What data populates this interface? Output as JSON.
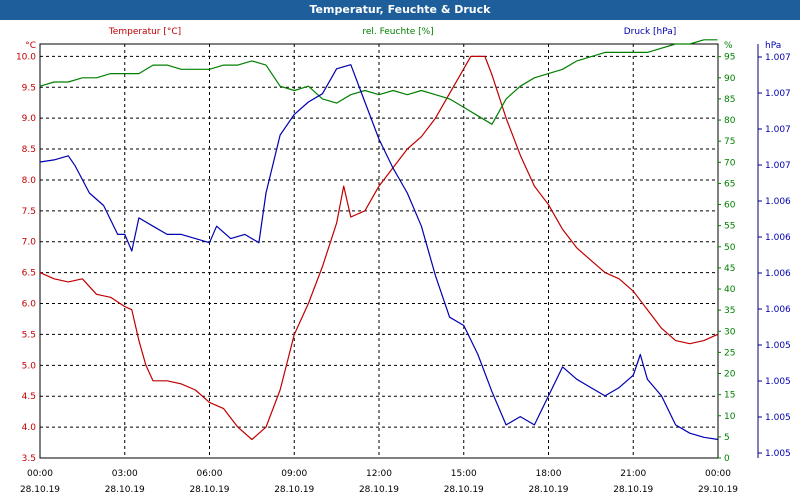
{
  "window": {
    "title": "Temperatur, Feuchte & Druck"
  },
  "chart_data": {
    "type": "line",
    "title": "Temperatur, Feuchte & Druck",
    "x_tick_times": [
      "00:00",
      "03:00",
      "06:00",
      "09:00",
      "12:00",
      "15:00",
      "18:00",
      "21:00",
      "00:00"
    ],
    "x_tick_dates": [
      "28.10.19",
      "28.10.19",
      "28.10.19",
      "28.10.19",
      "28.10.19",
      "28.10.19",
      "28.10.19",
      "28.10.19",
      "29.10.19"
    ],
    "xlim": [
      "28.10.19 00:00",
      "29.10.19 00:00"
    ],
    "grid": true,
    "axes": {
      "temperature": {
        "label": "Temperatur [°C]",
        "unit": "°C",
        "ylim": [
          3.5,
          10.2
        ],
        "ticks": [
          "10.0",
          "9.5",
          "9.0",
          "8.5",
          "8.0",
          "7.5",
          "7.0",
          "6.5",
          "6.0",
          "5.5",
          "5.0",
          "4.5",
          "4.0",
          "3.5"
        ],
        "color": "#c00000"
      },
      "humidity": {
        "label": "rel. Feuchte [%]",
        "unit": "%",
        "ylim": [
          0,
          98
        ],
        "ticks": [
          "95",
          "90",
          "85",
          "80",
          "75",
          "70",
          "65",
          "60",
          "55",
          "50",
          "45",
          "40",
          "35",
          "30",
          "25",
          "20",
          "15",
          "10",
          "5",
          "0"
        ],
        "color": "#008000"
      },
      "pressure": {
        "label": "Druck [hPa]",
        "unit": "hPa",
        "ticks": [
          "1.007",
          "1.007",
          "1.007",
          "1.007",
          "1.006",
          "1.006",
          "1.006",
          "1.006",
          "1.005",
          "1.005",
          "1.005",
          "1.005"
        ],
        "color": "#0000b0"
      }
    },
    "series": [
      {
        "name": "Temperatur [°C]",
        "axis": "temperature",
        "color": "#c00000",
        "points": [
          [
            "28.10.19 00:00",
            6.5
          ],
          [
            "28.10.19 00:30",
            6.4
          ],
          [
            "28.10.19 01:00",
            6.35
          ],
          [
            "28.10.19 01:30",
            6.4
          ],
          [
            "28.10.19 02:00",
            6.15
          ],
          [
            "28.10.19 02:30",
            6.1
          ],
          [
            "28.10.19 03:00",
            5.95
          ],
          [
            "28.10.19 03:15",
            5.9
          ],
          [
            "28.10.19 03:30",
            5.4
          ],
          [
            "28.10.19 03:45",
            5.0
          ],
          [
            "28.10.19 04:00",
            4.75
          ],
          [
            "28.10.19 04:30",
            4.75
          ],
          [
            "28.10.19 05:00",
            4.7
          ],
          [
            "28.10.19 05:30",
            4.6
          ],
          [
            "28.10.19 06:00",
            4.4
          ],
          [
            "28.10.19 06:30",
            4.3
          ],
          [
            "28.10.19 07:00",
            4.0
          ],
          [
            "28.10.19 07:30",
            3.8
          ],
          [
            "28.10.19 08:00",
            4.0
          ],
          [
            "28.10.19 08:30",
            4.6
          ],
          [
            "28.10.19 09:00",
            5.5
          ],
          [
            "28.10.19 09:30",
            6.0
          ],
          [
            "28.10.19 10:00",
            6.6
          ],
          [
            "28.10.19 10:30",
            7.3
          ],
          [
            "28.10.19 10:45",
            7.9
          ],
          [
            "28.10.19 11:00",
            7.4
          ],
          [
            "28.10.19 11:30",
            7.5
          ],
          [
            "28.10.19 12:00",
            7.9
          ],
          [
            "28.10.19 12:30",
            8.2
          ],
          [
            "28.10.19 13:00",
            8.5
          ],
          [
            "28.10.19 13:30",
            8.7
          ],
          [
            "28.10.19 14:00",
            9.0
          ],
          [
            "28.10.19 14:30",
            9.4
          ],
          [
            "28.10.19 15:00",
            9.8
          ],
          [
            "28.10.19 15:15",
            10.0
          ],
          [
            "28.10.19 15:45",
            10.0
          ],
          [
            "28.10.19 16:00",
            9.7
          ],
          [
            "28.10.19 16:30",
            9.0
          ],
          [
            "28.10.19 17:00",
            8.4
          ],
          [
            "28.10.19 17:30",
            7.9
          ],
          [
            "28.10.19 18:00",
            7.6
          ],
          [
            "28.10.19 18:30",
            7.2
          ],
          [
            "28.10.19 19:00",
            6.9
          ],
          [
            "28.10.19 19:30",
            6.7
          ],
          [
            "28.10.19 20:00",
            6.5
          ],
          [
            "28.10.19 20:30",
            6.4
          ],
          [
            "28.10.19 21:00",
            6.2
          ],
          [
            "28.10.19 21:30",
            5.9
          ],
          [
            "28.10.19 22:00",
            5.6
          ],
          [
            "28.10.19 22:30",
            5.4
          ],
          [
            "28.10.19 23:00",
            5.35
          ],
          [
            "28.10.19 23:30",
            5.4
          ],
          [
            "28.10.19 23:59",
            5.5
          ]
        ]
      },
      {
        "name": "rel. Feuchte [%]",
        "axis": "humidity",
        "color": "#008000",
        "points": [
          [
            "28.10.19 00:00",
            88
          ],
          [
            "28.10.19 00:30",
            89
          ],
          [
            "28.10.19 01:00",
            89
          ],
          [
            "28.10.19 01:30",
            90
          ],
          [
            "28.10.19 02:00",
            90
          ],
          [
            "28.10.19 02:30",
            91
          ],
          [
            "28.10.19 03:00",
            91
          ],
          [
            "28.10.19 03:30",
            91
          ],
          [
            "28.10.19 04:00",
            93
          ],
          [
            "28.10.19 04:30",
            93
          ],
          [
            "28.10.19 05:00",
            92
          ],
          [
            "28.10.19 05:30",
            92
          ],
          [
            "28.10.19 06:00",
            92
          ],
          [
            "28.10.19 06:30",
            93
          ],
          [
            "28.10.19 07:00",
            93
          ],
          [
            "28.10.19 07:30",
            94
          ],
          [
            "28.10.19 08:00",
            93
          ],
          [
            "28.10.19 08:30",
            88
          ],
          [
            "28.10.19 09:00",
            87
          ],
          [
            "28.10.19 09:30",
            88
          ],
          [
            "28.10.19 10:00",
            85
          ],
          [
            "28.10.19 10:30",
            84
          ],
          [
            "28.10.19 11:00",
            86
          ],
          [
            "28.10.19 11:30",
            87
          ],
          [
            "28.10.19 12:00",
            86
          ],
          [
            "28.10.19 12:30",
            87
          ],
          [
            "28.10.19 13:00",
            86
          ],
          [
            "28.10.19 13:30",
            87
          ],
          [
            "28.10.19 14:00",
            86
          ],
          [
            "28.10.19 14:30",
            85
          ],
          [
            "28.10.19 15:00",
            83
          ],
          [
            "28.10.19 15:30",
            81
          ],
          [
            "28.10.19 16:00",
            79
          ],
          [
            "28.10.19 16:30",
            85
          ],
          [
            "28.10.19 17:00",
            88
          ],
          [
            "28.10.19 17:30",
            90
          ],
          [
            "28.10.19 18:00",
            91
          ],
          [
            "28.10.19 18:30",
            92
          ],
          [
            "28.10.19 19:00",
            94
          ],
          [
            "28.10.19 19:30",
            95
          ],
          [
            "28.10.19 20:00",
            96
          ],
          [
            "28.10.19 20:30",
            96
          ],
          [
            "28.10.19 21:00",
            96
          ],
          [
            "28.10.19 21:30",
            96
          ],
          [
            "28.10.19 22:00",
            97
          ],
          [
            "28.10.19 22:30",
            98
          ],
          [
            "28.10.19 23:00",
            98
          ],
          [
            "28.10.19 23:30",
            99
          ],
          [
            "28.10.19 23:59",
            99
          ]
        ]
      },
      {
        "name": "Druck [hPa]",
        "axis": "pressure",
        "color": "#0000b0",
        "note_values": "relative position in chart range",
        "points": [
          [
            "28.10.19 00:00",
            0.715
          ],
          [
            "28.10.19 00:30",
            0.72
          ],
          [
            "28.10.19 01:00",
            0.73
          ],
          [
            "28.10.19 01:15",
            0.705
          ],
          [
            "28.10.19 01:45",
            0.64
          ],
          [
            "28.10.19 02:15",
            0.61
          ],
          [
            "28.10.19 02:45",
            0.54
          ],
          [
            "28.10.19 03:00",
            0.54
          ],
          [
            "28.10.19 03:15",
            0.5
          ],
          [
            "28.10.19 03:30",
            0.58
          ],
          [
            "28.10.19 04:00",
            0.56
          ],
          [
            "28.10.19 04:30",
            0.54
          ],
          [
            "28.10.19 05:00",
            0.54
          ],
          [
            "28.10.19 05:30",
            0.53
          ],
          [
            "28.10.19 06:00",
            0.52
          ],
          [
            "28.10.19 06:15",
            0.56
          ],
          [
            "28.10.19 06:45",
            0.53
          ],
          [
            "28.10.19 07:15",
            0.54
          ],
          [
            "28.10.19 07:45",
            0.52
          ],
          [
            "28.10.19 08:00",
            0.64
          ],
          [
            "28.10.19 08:30",
            0.78
          ],
          [
            "28.10.19 09:00",
            0.83
          ],
          [
            "28.10.19 09:30",
            0.86
          ],
          [
            "28.10.19 10:00",
            0.88
          ],
          [
            "28.10.19 10:30",
            0.94
          ],
          [
            "28.10.19 11:00",
            0.95
          ],
          [
            "28.10.19 11:30",
            0.86
          ],
          [
            "28.10.19 12:00",
            0.77
          ],
          [
            "28.10.19 12:30",
            0.7
          ],
          [
            "28.10.19 13:00",
            0.64
          ],
          [
            "28.10.19 13:30",
            0.56
          ],
          [
            "28.10.19 14:00",
            0.44
          ],
          [
            "28.10.19 14:30",
            0.34
          ],
          [
            "28.10.19 15:00",
            0.32
          ],
          [
            "28.10.19 15:30",
            0.25
          ],
          [
            "28.10.19 16:00",
            0.16
          ],
          [
            "28.10.19 16:30",
            0.08
          ],
          [
            "28.10.19 17:00",
            0.1
          ],
          [
            "28.10.19 17:30",
            0.08
          ],
          [
            "28.10.19 18:00",
            0.15
          ],
          [
            "28.10.19 18:30",
            0.22
          ],
          [
            "28.10.19 19:00",
            0.19
          ],
          [
            "28.10.19 19:30",
            0.17
          ],
          [
            "28.10.19 20:00",
            0.15
          ],
          [
            "28.10.19 20:30",
            0.17
          ],
          [
            "28.10.19 21:00",
            0.2
          ],
          [
            "28.10.19 21:15",
            0.25
          ],
          [
            "28.10.19 21:30",
            0.19
          ],
          [
            "28.10.19 22:00",
            0.15
          ],
          [
            "28.10.19 22:30",
            0.08
          ],
          [
            "28.10.19 23:00",
            0.06
          ],
          [
            "28.10.19 23:30",
            0.05
          ],
          [
            "28.10.19 23:59",
            0.045
          ]
        ]
      }
    ]
  }
}
